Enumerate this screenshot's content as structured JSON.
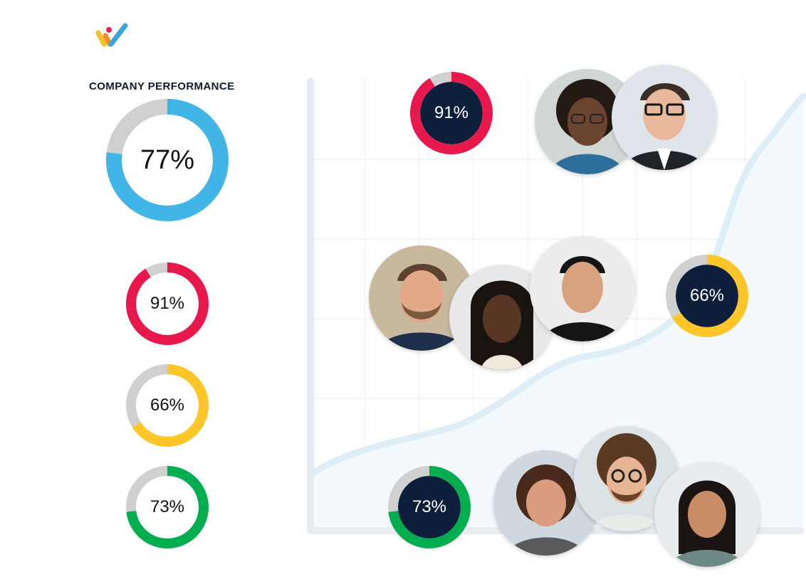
{
  "brand": {
    "logo_icon": "brand-logo-icon",
    "colors": {
      "yellow": "#f6c026",
      "pink": "#e41f56",
      "blue": "#3da4d9"
    }
  },
  "sidebar": {
    "title": "COMPANY PERFORMANCE",
    "main_ring": {
      "label": "77%",
      "value": 77,
      "color": "#41b6e6"
    },
    "rings": [
      {
        "label": "91%",
        "value": 91,
        "color": "#e8184d"
      },
      {
        "label": "66%",
        "value": 66,
        "color": "#ffc629"
      },
      {
        "label": "73%",
        "value": 73,
        "color": "#00ad4f"
      }
    ]
  },
  "chart": {
    "grid": true,
    "track_color": "#e8ecf1",
    "trend_color": "#ddeef9",
    "badges": [
      {
        "label": "91%",
        "value": 91,
        "color": "#e8184d"
      },
      {
        "label": "66%",
        "value": 66,
        "color": "#ffc629"
      },
      {
        "label": "73%",
        "value": 73,
        "color": "#00ad4f"
      }
    ],
    "dark_center": "#0e1f3c"
  },
  "avatars": [
    {
      "name": "avatar-woman-glasses"
    },
    {
      "name": "avatar-man-glasses"
    },
    {
      "name": "avatar-bearded-man"
    },
    {
      "name": "avatar-woman-braids"
    },
    {
      "name": "avatar-young-man"
    },
    {
      "name": "avatar-woman-smiling"
    },
    {
      "name": "avatar-curly-hair-man"
    },
    {
      "name": "avatar-young-woman"
    }
  ]
}
